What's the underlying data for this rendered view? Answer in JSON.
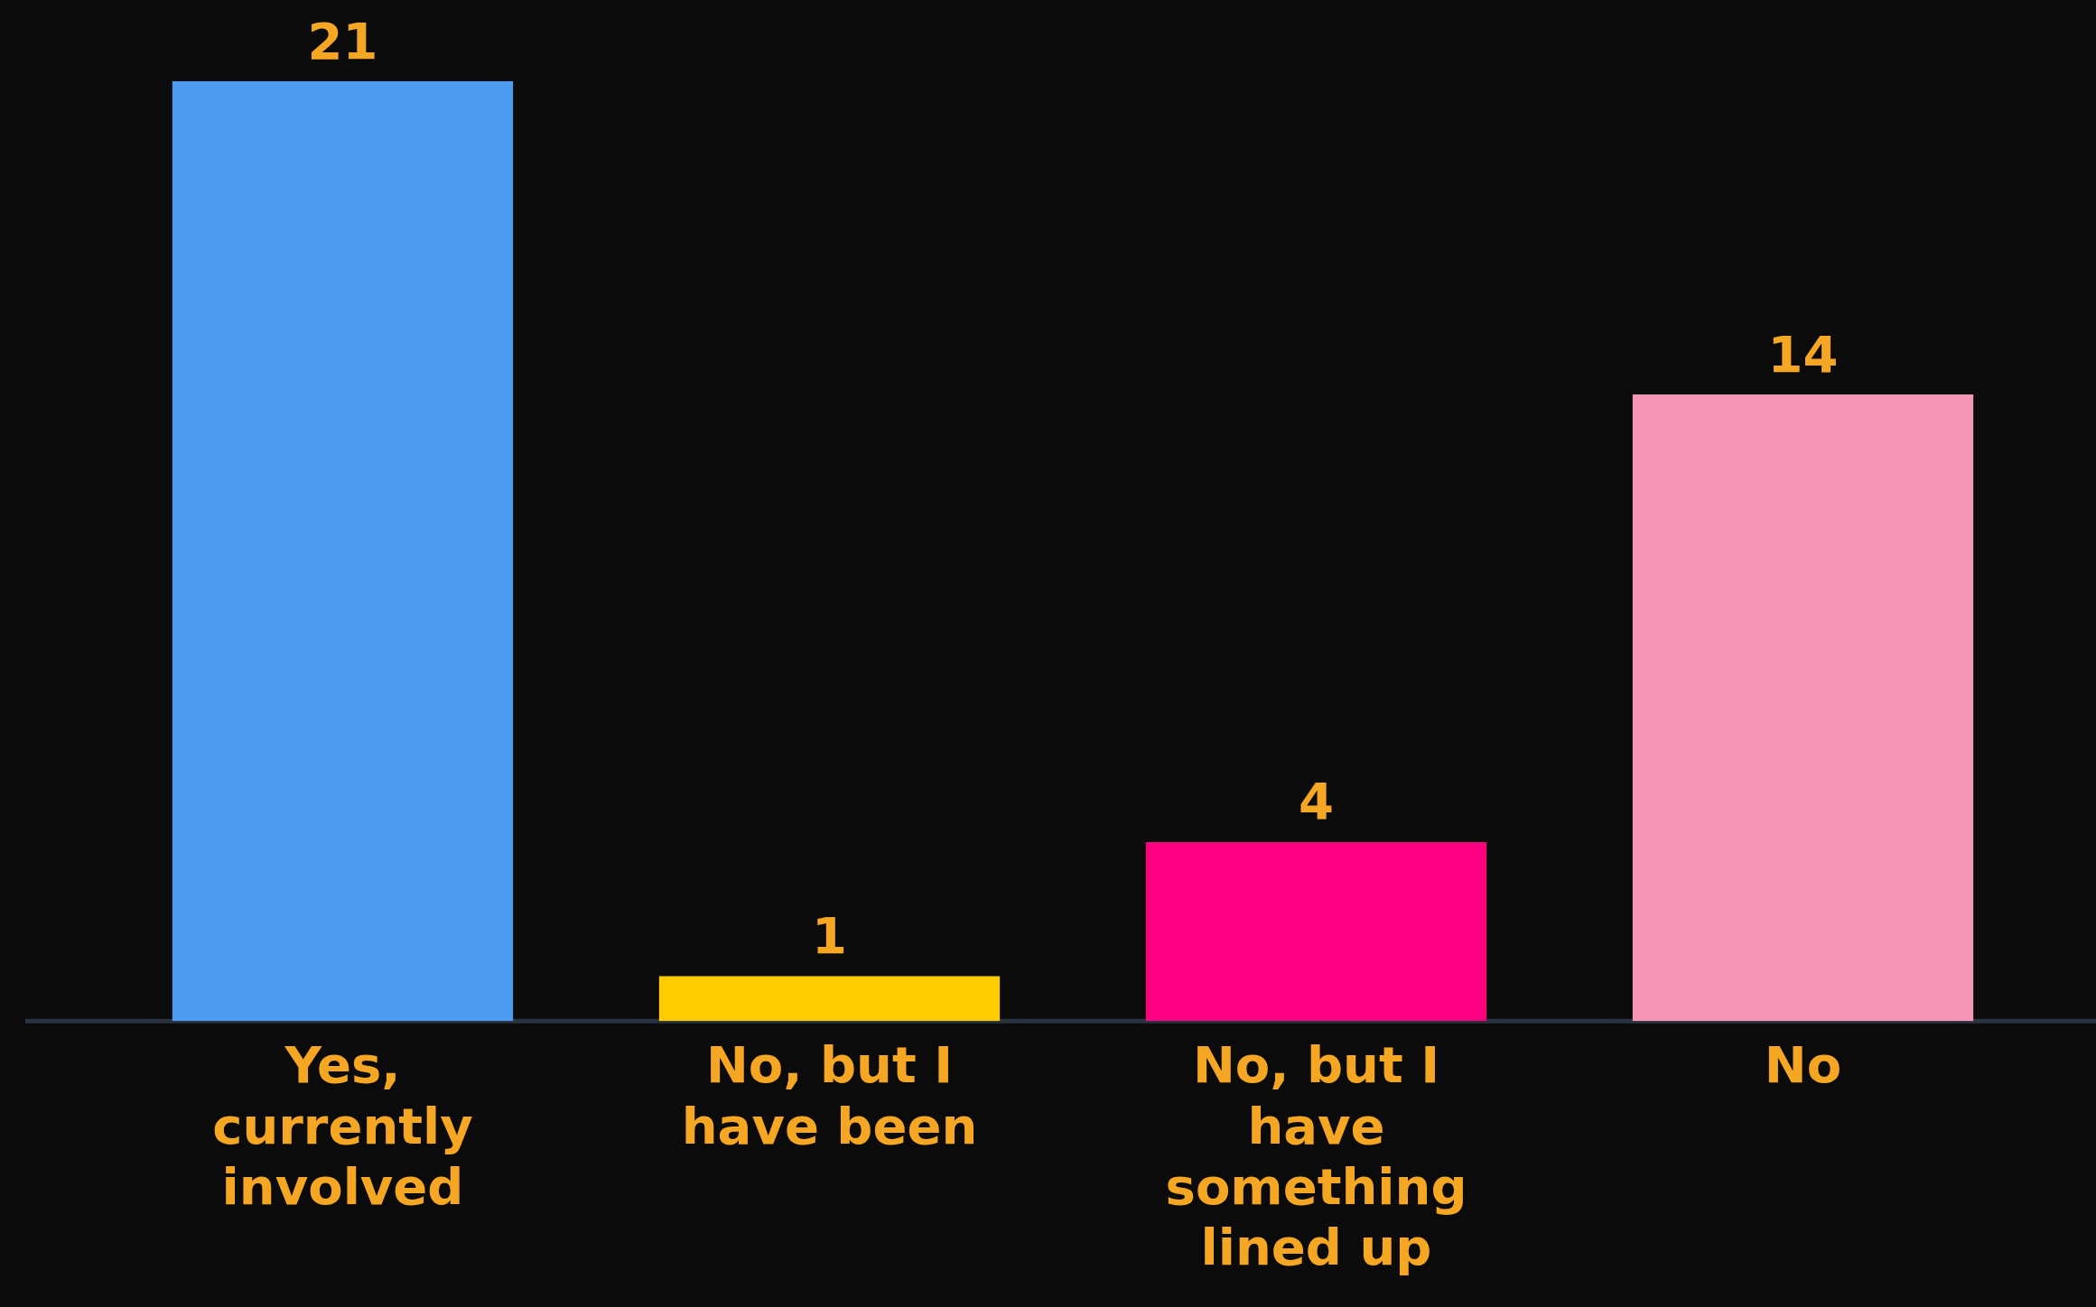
{
  "chart_data": {
    "type": "bar",
    "categories": [
      "Yes, currently involved",
      "No, but I have been",
      "No, but I have something lined up",
      "No"
    ],
    "values": [
      21,
      1,
      4,
      14
    ],
    "colors": [
      "#4f9bef",
      "#ffcc00",
      "#ff0080",
      "#f797b8"
    ],
    "data_labels": true,
    "tick_labels": "x"
  }
}
